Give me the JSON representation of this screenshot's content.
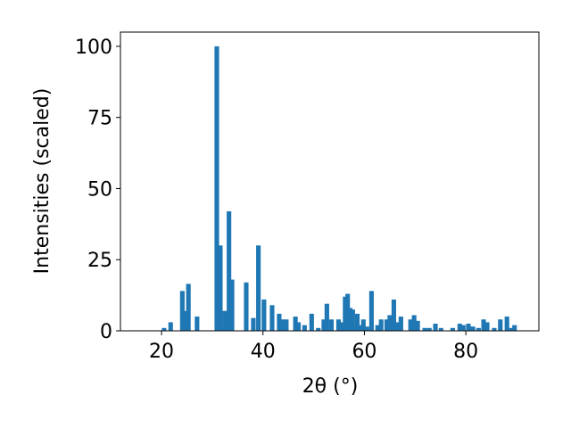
{
  "chart_data": {
    "type": "bar",
    "xlabel": "2θ (°)",
    "ylabel": "Intensities (scaled)",
    "x": [
      20.5,
      21.8,
      24.1,
      24.6,
      25.3,
      27.0,
      30.9,
      31.6,
      32.5,
      33.3,
      33.9,
      36.7,
      38.1,
      39.1,
      40.2,
      41.8,
      43.2,
      43.8,
      44.6,
      46.4,
      47.0,
      48.2,
      49.6,
      50.9,
      52.0,
      52.6,
      53.5,
      54.9,
      55.6,
      56.2,
      56.7,
      57.2,
      57.7,
      58.6,
      59.1,
      59.8,
      60.5,
      61.4,
      62.6,
      63.3,
      64.4,
      65.0,
      65.8,
      66.5,
      67.2,
      69.1,
      69.8,
      70.5,
      71.9,
      72.8,
      74.0,
      75.1,
      77.4,
      78.8,
      79.5,
      80.5,
      81.4,
      82.5,
      83.5,
      84.2,
      85.6,
      86.8,
      88.1,
      89.0,
      89.6
    ],
    "values": [
      1,
      3,
      14,
      7,
      16.5,
      5,
      100,
      30,
      7,
      42,
      18,
      17,
      4.5,
      30,
      11,
      9,
      6,
      4,
      4,
      5,
      3,
      2,
      6,
      1,
      4,
      9.5,
      4,
      4,
      3,
      12,
      13,
      8,
      7.5,
      6,
      2,
      4,
      1.5,
      14,
      2,
      4,
      4,
      5.5,
      11,
      3,
      5,
      4,
      5.5,
      3.5,
      1,
      1,
      2.5,
      1,
      1,
      2.5,
      2,
      2.5,
      1.5,
      1,
      4,
      3,
      1,
      4,
      5,
      1,
      2
    ],
    "color": "#1f77b4",
    "xlim": [
      11.9,
      94.4
    ],
    "xticks": [
      20,
      40,
      60,
      80
    ],
    "ylim": [
      0,
      105
    ],
    "yticks": [
      0,
      25,
      50,
      75,
      100
    ],
    "grid": false
  }
}
